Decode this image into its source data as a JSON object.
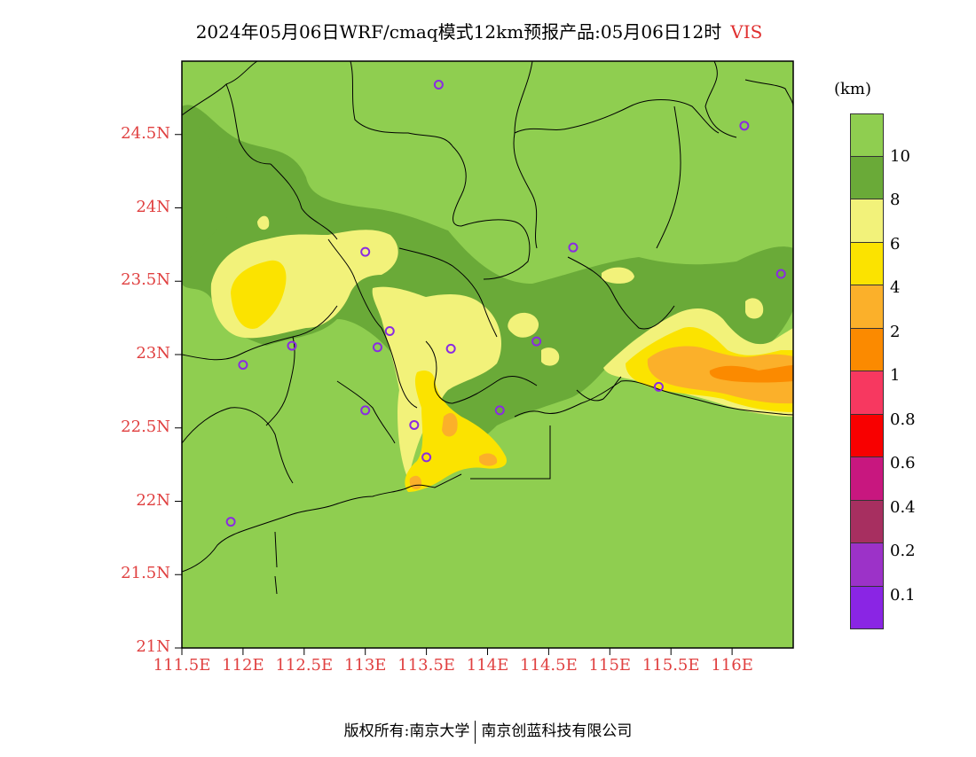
{
  "title": {
    "main": "2024年05月06日WRF/cmaq模式12km预报产品:05月06日12时",
    "variable": "VIS"
  },
  "axes": {
    "lat_ticks": [
      "24.5N",
      "24N",
      "23.5N",
      "23N",
      "22.5N",
      "22N",
      "21.5N",
      "21N"
    ],
    "lon_ticks": [
      "111.5E",
      "112E",
      "112.5E",
      "113E",
      "113.5E",
      "114E",
      "114.5E",
      "115E",
      "115.5E",
      "116E"
    ],
    "lat_values": [
      24.5,
      24,
      23.5,
      23,
      22.5,
      22,
      21.5,
      21
    ],
    "lon_values": [
      111.5,
      112,
      112.5,
      113,
      113.5,
      114,
      114.5,
      115,
      115.5,
      116
    ],
    "extent": {
      "lon_min": 111.5,
      "lon_max": 116.5,
      "lat_min": 21,
      "lat_max": 25
    }
  },
  "legend": {
    "unit": "(km)",
    "colors": [
      "#8fce50",
      "#6aaa38",
      "#f2f27a",
      "#fbe300",
      "#fbb02a",
      "#fb8a00",
      "#f73860",
      "#f80000",
      "#c8177f",
      "#a72f60",
      "#9c32c8",
      "#8a25e4"
    ],
    "labels": [
      "10",
      "8",
      "6",
      "4",
      "2",
      "1",
      "0.8",
      "0.6",
      "0.4",
      "0.2",
      "0.1"
    ]
  },
  "stations": [
    {
      "lon": 113.6,
      "lat": 24.84
    },
    {
      "lon": 116.1,
      "lat": 24.56
    },
    {
      "lon": 113.0,
      "lat": 23.7
    },
    {
      "lon": 114.7,
      "lat": 23.73
    },
    {
      "lon": 116.4,
      "lat": 23.55
    },
    {
      "lon": 112.4,
      "lat": 23.06
    },
    {
      "lon": 113.1,
      "lat": 23.05
    },
    {
      "lon": 113.2,
      "lat": 23.16
    },
    {
      "lon": 113.7,
      "lat": 23.04
    },
    {
      "lon": 114.4,
      "lat": 23.09
    },
    {
      "lon": 112.0,
      "lat": 22.93
    },
    {
      "lon": 115.4,
      "lat": 22.78
    },
    {
      "lon": 113.0,
      "lat": 22.62
    },
    {
      "lon": 113.4,
      "lat": 22.52
    },
    {
      "lon": 114.1,
      "lat": 22.62
    },
    {
      "lon": 113.5,
      "lat": 22.3
    },
    {
      "lon": 111.9,
      "lat": 21.86
    }
  ],
  "footer": {
    "left": "版权所有:南京大学",
    "right": "南京创蓝科技有限公司"
  }
}
